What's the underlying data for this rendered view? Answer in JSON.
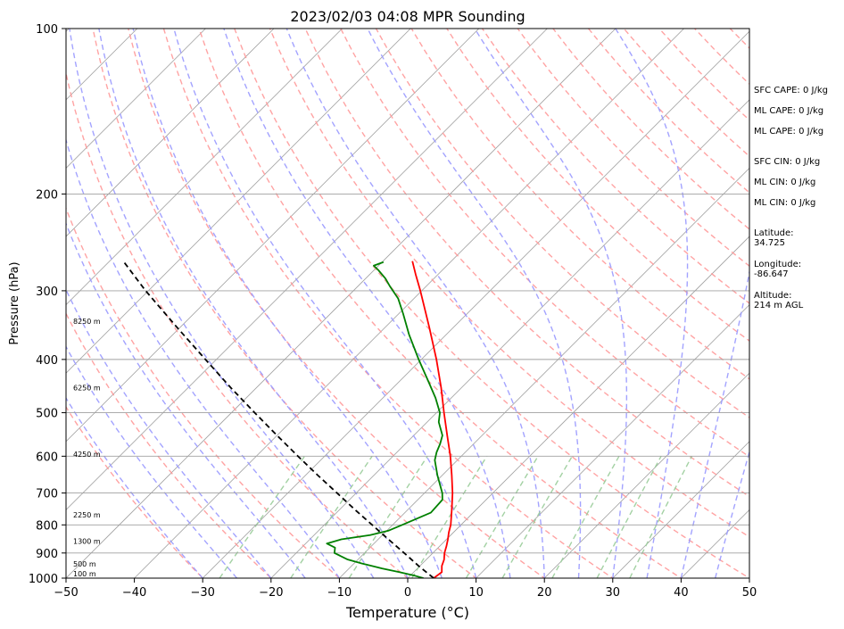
{
  "chart_data": {
    "type": "line",
    "title": "2023/02/03 04:08 MPR Sounding",
    "xlabel": "Temperature (°C)",
    "ylabel": "Pressure (hPa)",
    "xlim": [
      -50,
      50
    ],
    "ylim": [
      1000,
      100
    ],
    "y_scale": "log",
    "grid": true,
    "x_ticks": [
      -50,
      -40,
      -30,
      -20,
      -10,
      0,
      10,
      20,
      30,
      40,
      50
    ],
    "x_tick_labels": [
      "−50",
      "−40",
      "−30",
      "−20",
      "−10",
      "0",
      "10",
      "20",
      "30",
      "40",
      "50"
    ],
    "y_ticks": [
      1000,
      900,
      800,
      700,
      600,
      500,
      400,
      300,
      200,
      100
    ],
    "y_tick_labels": [
      "1000",
      "900",
      "800",
      "700",
      "600",
      "500",
      "400",
      "300",
      "200",
      "100"
    ],
    "skew": 45,
    "background_lines": {
      "isotherms_color": "#a0a0a0",
      "dry_adiabats_color": "#ff9999",
      "moist_adiabats_color": "#9999ff",
      "mixing_ratio_color": "#99cc99",
      "isobar_color": "#a0a0a0"
    },
    "series": [
      {
        "color": "#ff0000",
        "points": [
          {
            "p": 1000,
            "t": 3.8
          },
          {
            "p": 975,
            "t": 4.1
          },
          {
            "p": 950,
            "t": 3.2
          },
          {
            "p": 925,
            "t": 2.6
          },
          {
            "p": 900,
            "t": 1.7
          },
          {
            "p": 875,
            "t": 1.0
          },
          {
            "p": 850,
            "t": 0.2
          },
          {
            "p": 825,
            "t": -0.7
          },
          {
            "p": 800,
            "t": -1.5
          },
          {
            "p": 750,
            "t": -3.6
          },
          {
            "p": 700,
            "t": -5.9
          },
          {
            "p": 650,
            "t": -8.6
          },
          {
            "p": 600,
            "t": -11.6
          },
          {
            "p": 550,
            "t": -15.1
          },
          {
            "p": 500,
            "t": -18.9
          },
          {
            "p": 450,
            "t": -23.0
          },
          {
            "p": 400,
            "t": -27.8
          },
          {
            "p": 350,
            "t": -33.5
          },
          {
            "p": 300,
            "t": -40.2
          },
          {
            "p": 280,
            "t": -43.3
          },
          {
            "p": 265,
            "t": -45.7
          }
        ]
      },
      {
        "color": "#008000",
        "points": [
          {
            "p": 1000,
            "t": 2.3
          },
          {
            "p": 990,
            "t": 0.7
          },
          {
            "p": 975,
            "t": -2.1
          },
          {
            "p": 960,
            "t": -5.2
          },
          {
            "p": 940,
            "t": -8.9
          },
          {
            "p": 925,
            "t": -11.5
          },
          {
            "p": 900,
            "t": -14.4
          },
          {
            "p": 880,
            "t": -15.1
          },
          {
            "p": 865,
            "t": -16.9
          },
          {
            "p": 850,
            "t": -15.4
          },
          {
            "p": 835,
            "t": -11.8
          },
          {
            "p": 820,
            "t": -9.8
          },
          {
            "p": 800,
            "t": -8.6
          },
          {
            "p": 760,
            "t": -6.2
          },
          {
            "p": 720,
            "t": -6.4
          },
          {
            "p": 700,
            "t": -7.4
          },
          {
            "p": 650,
            "t": -10.7
          },
          {
            "p": 610,
            "t": -13.3
          },
          {
            "p": 590,
            "t": -14.2
          },
          {
            "p": 570,
            "t": -14.9
          },
          {
            "p": 550,
            "t": -15.8
          },
          {
            "p": 520,
            "t": -18.3
          },
          {
            "p": 500,
            "t": -19.5
          },
          {
            "p": 470,
            "t": -22.3
          },
          {
            "p": 440,
            "t": -25.6
          },
          {
            "p": 400,
            "t": -30.4
          },
          {
            "p": 360,
            "t": -35.5
          },
          {
            "p": 330,
            "t": -39.4
          },
          {
            "p": 310,
            "t": -42.3
          },
          {
            "p": 295,
            "t": -45.2
          },
          {
            "p": 285,
            "t": -47.1
          },
          {
            "p": 275,
            "t": -49.4
          },
          {
            "p": 270,
            "t": -50.7
          },
          {
            "p": 266,
            "t": -49.8
          }
        ]
      },
      {
        "color": "#000000",
        "dashed": true,
        "points": [
          {
            "p": 1000,
            "t": 3.8
          },
          {
            "p": 950,
            "t": -0.2
          },
          {
            "p": 900,
            "t": -4.2
          },
          {
            "p": 850,
            "t": -8.5
          },
          {
            "p": 800,
            "t": -13.0
          },
          {
            "p": 750,
            "t": -17.8
          },
          {
            "p": 700,
            "t": -22.8
          },
          {
            "p": 650,
            "t": -28.2
          },
          {
            "p": 600,
            "t": -33.9
          },
          {
            "p": 550,
            "t": -40.0
          },
          {
            "p": 500,
            "t": -46.6
          },
          {
            "p": 450,
            "t": -53.8
          },
          {
            "p": 400,
            "t": -61.6
          },
          {
            "p": 350,
            "t": -70.4
          },
          {
            "p": 300,
            "t": -80.4
          },
          {
            "p": 265,
            "t": -88.0
          }
        ]
      }
    ],
    "height_labels": [
      {
        "p": 985,
        "text": "100 m"
      },
      {
        "p": 945,
        "text": "500 m"
      },
      {
        "p": 860,
        "text": "1300 m"
      },
      {
        "p": 770,
        "text": "2250 m"
      },
      {
        "p": 597,
        "text": "4250 m"
      },
      {
        "p": 452,
        "text": "6250 m"
      },
      {
        "p": 342,
        "text": "8250 m"
      }
    ],
    "annotations": [
      {
        "text": "SFC CAPE: 0 J/kg"
      },
      {
        "text": "ML CAPE: 0 J/kg"
      },
      {
        "text": "ML CAPE: 0 J/kg"
      },
      {
        "text": "SFC CIN: 0 J/kg"
      },
      {
        "text": "ML CIN: 0 J/kg"
      },
      {
        "text": "ML CIN: 0 J/kg"
      },
      {
        "text": "Latitude:\n34.725"
      },
      {
        "text": "Longitude:\n-86.647"
      },
      {
        "text": "Altitude:\n214 m AGL"
      }
    ]
  }
}
